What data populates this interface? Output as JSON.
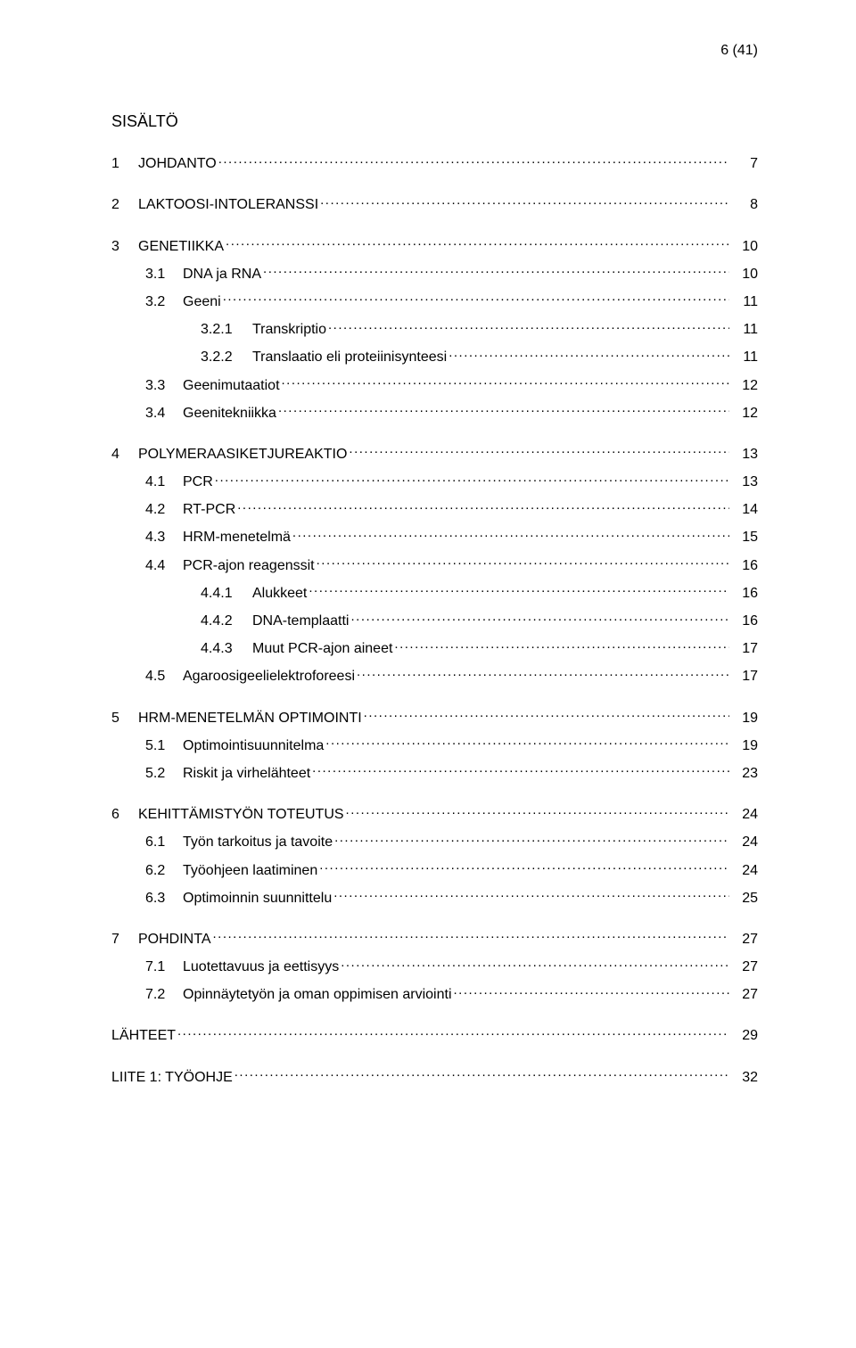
{
  "page_label": "6 (41)",
  "main_title": "SISÄLTÖ",
  "typography": {
    "font_family": "Verdana, Arial, sans-serif",
    "body_fontsize_pt": 12,
    "title_fontsize_pt": 13,
    "color": "#000000",
    "background": "#ffffff"
  },
  "toc": [
    {
      "level": 1,
      "num": "1",
      "title": "JOHDANTO",
      "page": "7"
    },
    {
      "level": 1,
      "num": "2",
      "title": "LAKTOOSI-INTOLERANSSI",
      "page": "8"
    },
    {
      "level": 1,
      "num": "3",
      "title": "GENETIIKKA",
      "page": "10"
    },
    {
      "level": 2,
      "num": "3.1",
      "title": "DNA ja RNA",
      "page": "10"
    },
    {
      "level": 2,
      "num": "3.2",
      "title": "Geeni",
      "page": "11"
    },
    {
      "level": 3,
      "num": "3.2.1",
      "title": "Transkriptio",
      "page": "11"
    },
    {
      "level": 3,
      "num": "3.2.2",
      "title": "Translaatio eli proteiinisynteesi",
      "page": "11"
    },
    {
      "level": 2,
      "num": "3.3",
      "title": "Geenimutaatiot",
      "page": "12"
    },
    {
      "level": 2,
      "num": "3.4",
      "title": "Geenitekniikka",
      "page": "12"
    },
    {
      "level": 1,
      "num": "4",
      "title": "POLYMERAASIKETJUREAKTIO",
      "page": "13"
    },
    {
      "level": 2,
      "num": "4.1",
      "title": "PCR",
      "page": "13"
    },
    {
      "level": 2,
      "num": "4.2",
      "title": "RT-PCR",
      "page": "14"
    },
    {
      "level": 2,
      "num": "4.3",
      "title": "HRM-menetelmä",
      "page": "15"
    },
    {
      "level": 2,
      "num": "4.4",
      "title": "PCR-ajon reagenssit",
      "page": "16"
    },
    {
      "level": 3,
      "num": "4.4.1",
      "title": "Alukkeet",
      "page": "16"
    },
    {
      "level": 3,
      "num": "4.4.2",
      "title": "DNA-templaatti",
      "page": "16"
    },
    {
      "level": 3,
      "num": "4.4.3",
      "title": "Muut PCR-ajon aineet",
      "page": "17"
    },
    {
      "level": 2,
      "num": "4.5",
      "title": "Agaroosigeelielektroforeesi",
      "page": "17"
    },
    {
      "level": 1,
      "num": "5",
      "title": "HRM-MENETELMÄN OPTIMOINTI",
      "page": "19"
    },
    {
      "level": 2,
      "num": "5.1",
      "title": "Optimointisuunnitelma",
      "page": "19"
    },
    {
      "level": 2,
      "num": "5.2",
      "title": "Riskit ja virhelähteet",
      "page": "23"
    },
    {
      "level": 1,
      "num": "6",
      "title": "KEHITTÄMISTYÖN TOTEUTUS",
      "page": "24"
    },
    {
      "level": 2,
      "num": "6.1",
      "title": "Työn tarkoitus ja tavoite",
      "page": "24"
    },
    {
      "level": 2,
      "num": "6.2",
      "title": "Työohjeen laatiminen",
      "page": "24"
    },
    {
      "level": 2,
      "num": "6.3",
      "title": "Optimoinnin suunnittelu",
      "page": "25"
    },
    {
      "level": 1,
      "num": "7",
      "title": "POHDINTA",
      "page": "27"
    },
    {
      "level": 2,
      "num": "7.1",
      "title": "Luotettavuus ja eettisyys",
      "page": "27"
    },
    {
      "level": 2,
      "num": "7.2",
      "title": "Opinnäytetyön ja oman oppimisen arviointi",
      "page": "27"
    }
  ],
  "tail": [
    {
      "title": "LÄHTEET",
      "page": "29"
    },
    {
      "title": "LIITE 1: TYÖOHJE",
      "page": "32"
    }
  ]
}
